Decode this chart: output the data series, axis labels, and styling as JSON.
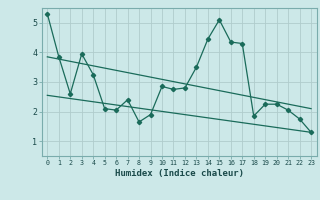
{
  "xlabel": "Humidex (Indice chaleur)",
  "background_color": "#cce8e8",
  "grid_color": "#b0cccc",
  "line_color": "#1a6b5a",
  "x_ticks": [
    0,
    1,
    2,
    3,
    4,
    5,
    6,
    7,
    8,
    9,
    10,
    11,
    12,
    13,
    14,
    15,
    16,
    17,
    18,
    19,
    20,
    21,
    22,
    23
  ],
  "y_ticks": [
    1,
    2,
    3,
    4,
    5
  ],
  "ylim": [
    0.5,
    5.5
  ],
  "xlim": [
    -0.5,
    23.5
  ],
  "series1_x": [
    0,
    1,
    2,
    3,
    4,
    5,
    6,
    7,
    8,
    9,
    10,
    11,
    12,
    13,
    14,
    15,
    16,
    17,
    18,
    19,
    20,
    21,
    22,
    23
  ],
  "series1_y": [
    5.3,
    3.85,
    2.6,
    3.95,
    3.25,
    2.1,
    2.05,
    2.4,
    1.65,
    1.9,
    2.85,
    2.75,
    2.8,
    3.5,
    4.45,
    5.1,
    4.35,
    4.3,
    1.85,
    2.25,
    2.25,
    2.05,
    1.75,
    1.3
  ],
  "series2_x": [
    0,
    23
  ],
  "series2_y": [
    2.55,
    1.3
  ],
  "series3_x": [
    0,
    23
  ],
  "series3_y": [
    3.85,
    2.1
  ]
}
